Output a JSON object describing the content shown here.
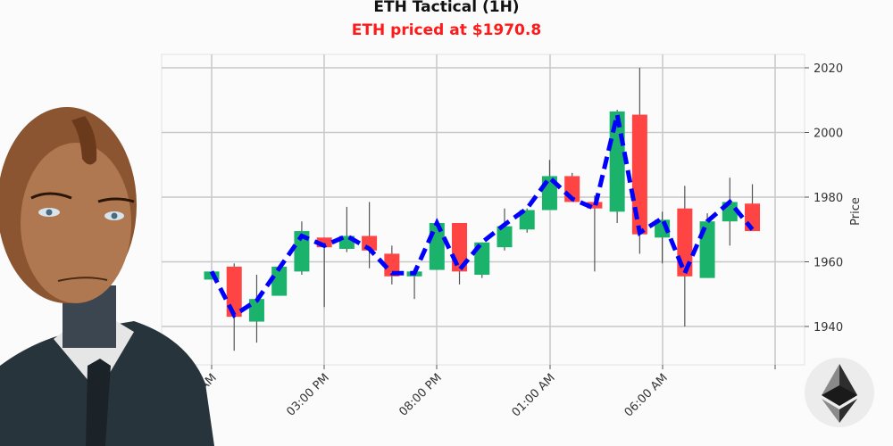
{
  "header": {
    "title": "ETH Tactical (1H)",
    "subtitle": "ETH priced at $1970.8",
    "subtitle_color": "#ff1a1a"
  },
  "colors": {
    "up": "#1bb36b",
    "down": "#ff4444",
    "wick": "#555555",
    "trend_line": "#0000ff",
    "grid": "#c8c8c8"
  },
  "chart_data": {
    "type": "candlestick",
    "title": "ETH Tactical (1H)",
    "subtitle": "ETH priced at $1970.8",
    "xlabel": "",
    "ylabel": "Price",
    "ylim": [
      1928,
      2024
    ],
    "yticks": [
      1940,
      1960,
      1980,
      2000,
      2020
    ],
    "xtick_labels": [
      "10:00 AM",
      "03:00 PM",
      "08:00 PM",
      "01:00 AM",
      "06:00 AM"
    ],
    "grid": true,
    "y_axis_position": "right",
    "candles": [
      {
        "o": 1954.5,
        "h": 1957.0,
        "l": 1954.5,
        "c": 1957.0
      },
      {
        "o": 1958.5,
        "h": 1959.5,
        "l": 1932.5,
        "c": 1943.0
      },
      {
        "o": 1941.5,
        "h": 1956.0,
        "l": 1935.0,
        "c": 1948.5
      },
      {
        "o": 1949.5,
        "h": 1958.5,
        "l": 1949.5,
        "c": 1958.5
      },
      {
        "o": 1957.0,
        "h": 1972.5,
        "l": 1956.0,
        "c": 1969.5
      },
      {
        "o": 1967.5,
        "h": 1967.5,
        "l": 1946.0,
        "c": 1964.5
      },
      {
        "o": 1964.0,
        "h": 1977.0,
        "l": 1963.0,
        "c": 1968.0
      },
      {
        "o": 1968.0,
        "h": 1978.5,
        "l": 1958.0,
        "c": 1963.5
      },
      {
        "o": 1962.5,
        "h": 1965.0,
        "l": 1953.0,
        "c": 1955.5
      },
      {
        "o": 1955.5,
        "h": 1957.0,
        "l": 1948.5,
        "c": 1957.0
      },
      {
        "o": 1957.5,
        "h": 1972.0,
        "l": 1957.5,
        "c": 1972.0
      },
      {
        "o": 1972.0,
        "h": 1972.0,
        "l": 1953.0,
        "c": 1957.0
      },
      {
        "o": 1956.0,
        "h": 1966.0,
        "l": 1955.0,
        "c": 1966.0
      },
      {
        "o": 1964.5,
        "h": 1976.5,
        "l": 1963.5,
        "c": 1971.0
      },
      {
        "o": 1970.0,
        "h": 1976.5,
        "l": 1969.0,
        "c": 1976.0
      },
      {
        "o": 1976.0,
        "h": 1991.5,
        "l": 1976.0,
        "c": 1986.5
      },
      {
        "o": 1986.5,
        "h": 1987.5,
        "l": 1978.5,
        "c": 1978.5
      },
      {
        "o": 1978.5,
        "h": 1980.5,
        "l": 1957.0,
        "c": 1976.5
      },
      {
        "o": 1975.5,
        "h": 2007.0,
        "l": 1972.0,
        "c": 2006.5
      },
      {
        "o": 2005.5,
        "h": 2020.0,
        "l": 1962.5,
        "c": 1968.5
      },
      {
        "o": 1967.5,
        "h": 1975.5,
        "l": 1959.5,
        "c": 1973.0
      },
      {
        "o": 1976.5,
        "h": 1983.5,
        "l": 1940.0,
        "c": 1955.5
      },
      {
        "o": 1955.0,
        "h": 1975.0,
        "l": 1955.0,
        "c": 1972.5
      },
      {
        "o": 1972.5,
        "h": 1986.0,
        "l": 1965.0,
        "c": 1978.5
      },
      {
        "o": 1978.0,
        "h": 1984.0,
        "l": 1969.5,
        "c": 1969.5
      }
    ],
    "trend_line": {
      "style": "dashed",
      "color": "#0000ff",
      "values": [
        1957.0,
        1943.5,
        1948.0,
        1958.0,
        1968.0,
        1965.0,
        1968.0,
        1964.0,
        1956.5,
        1956.5,
        1972.0,
        1957.5,
        1966.0,
        1971.5,
        1976.5,
        1986.0,
        1979.5,
        1976.5,
        2005.5,
        1969.0,
        1973.5,
        1956.5,
        1972.5,
        1978.5,
        1970.0
      ]
    }
  },
  "avatar": {
    "label": "robot-advisor-portrait"
  },
  "logo": {
    "label": "ethereum-logo"
  }
}
